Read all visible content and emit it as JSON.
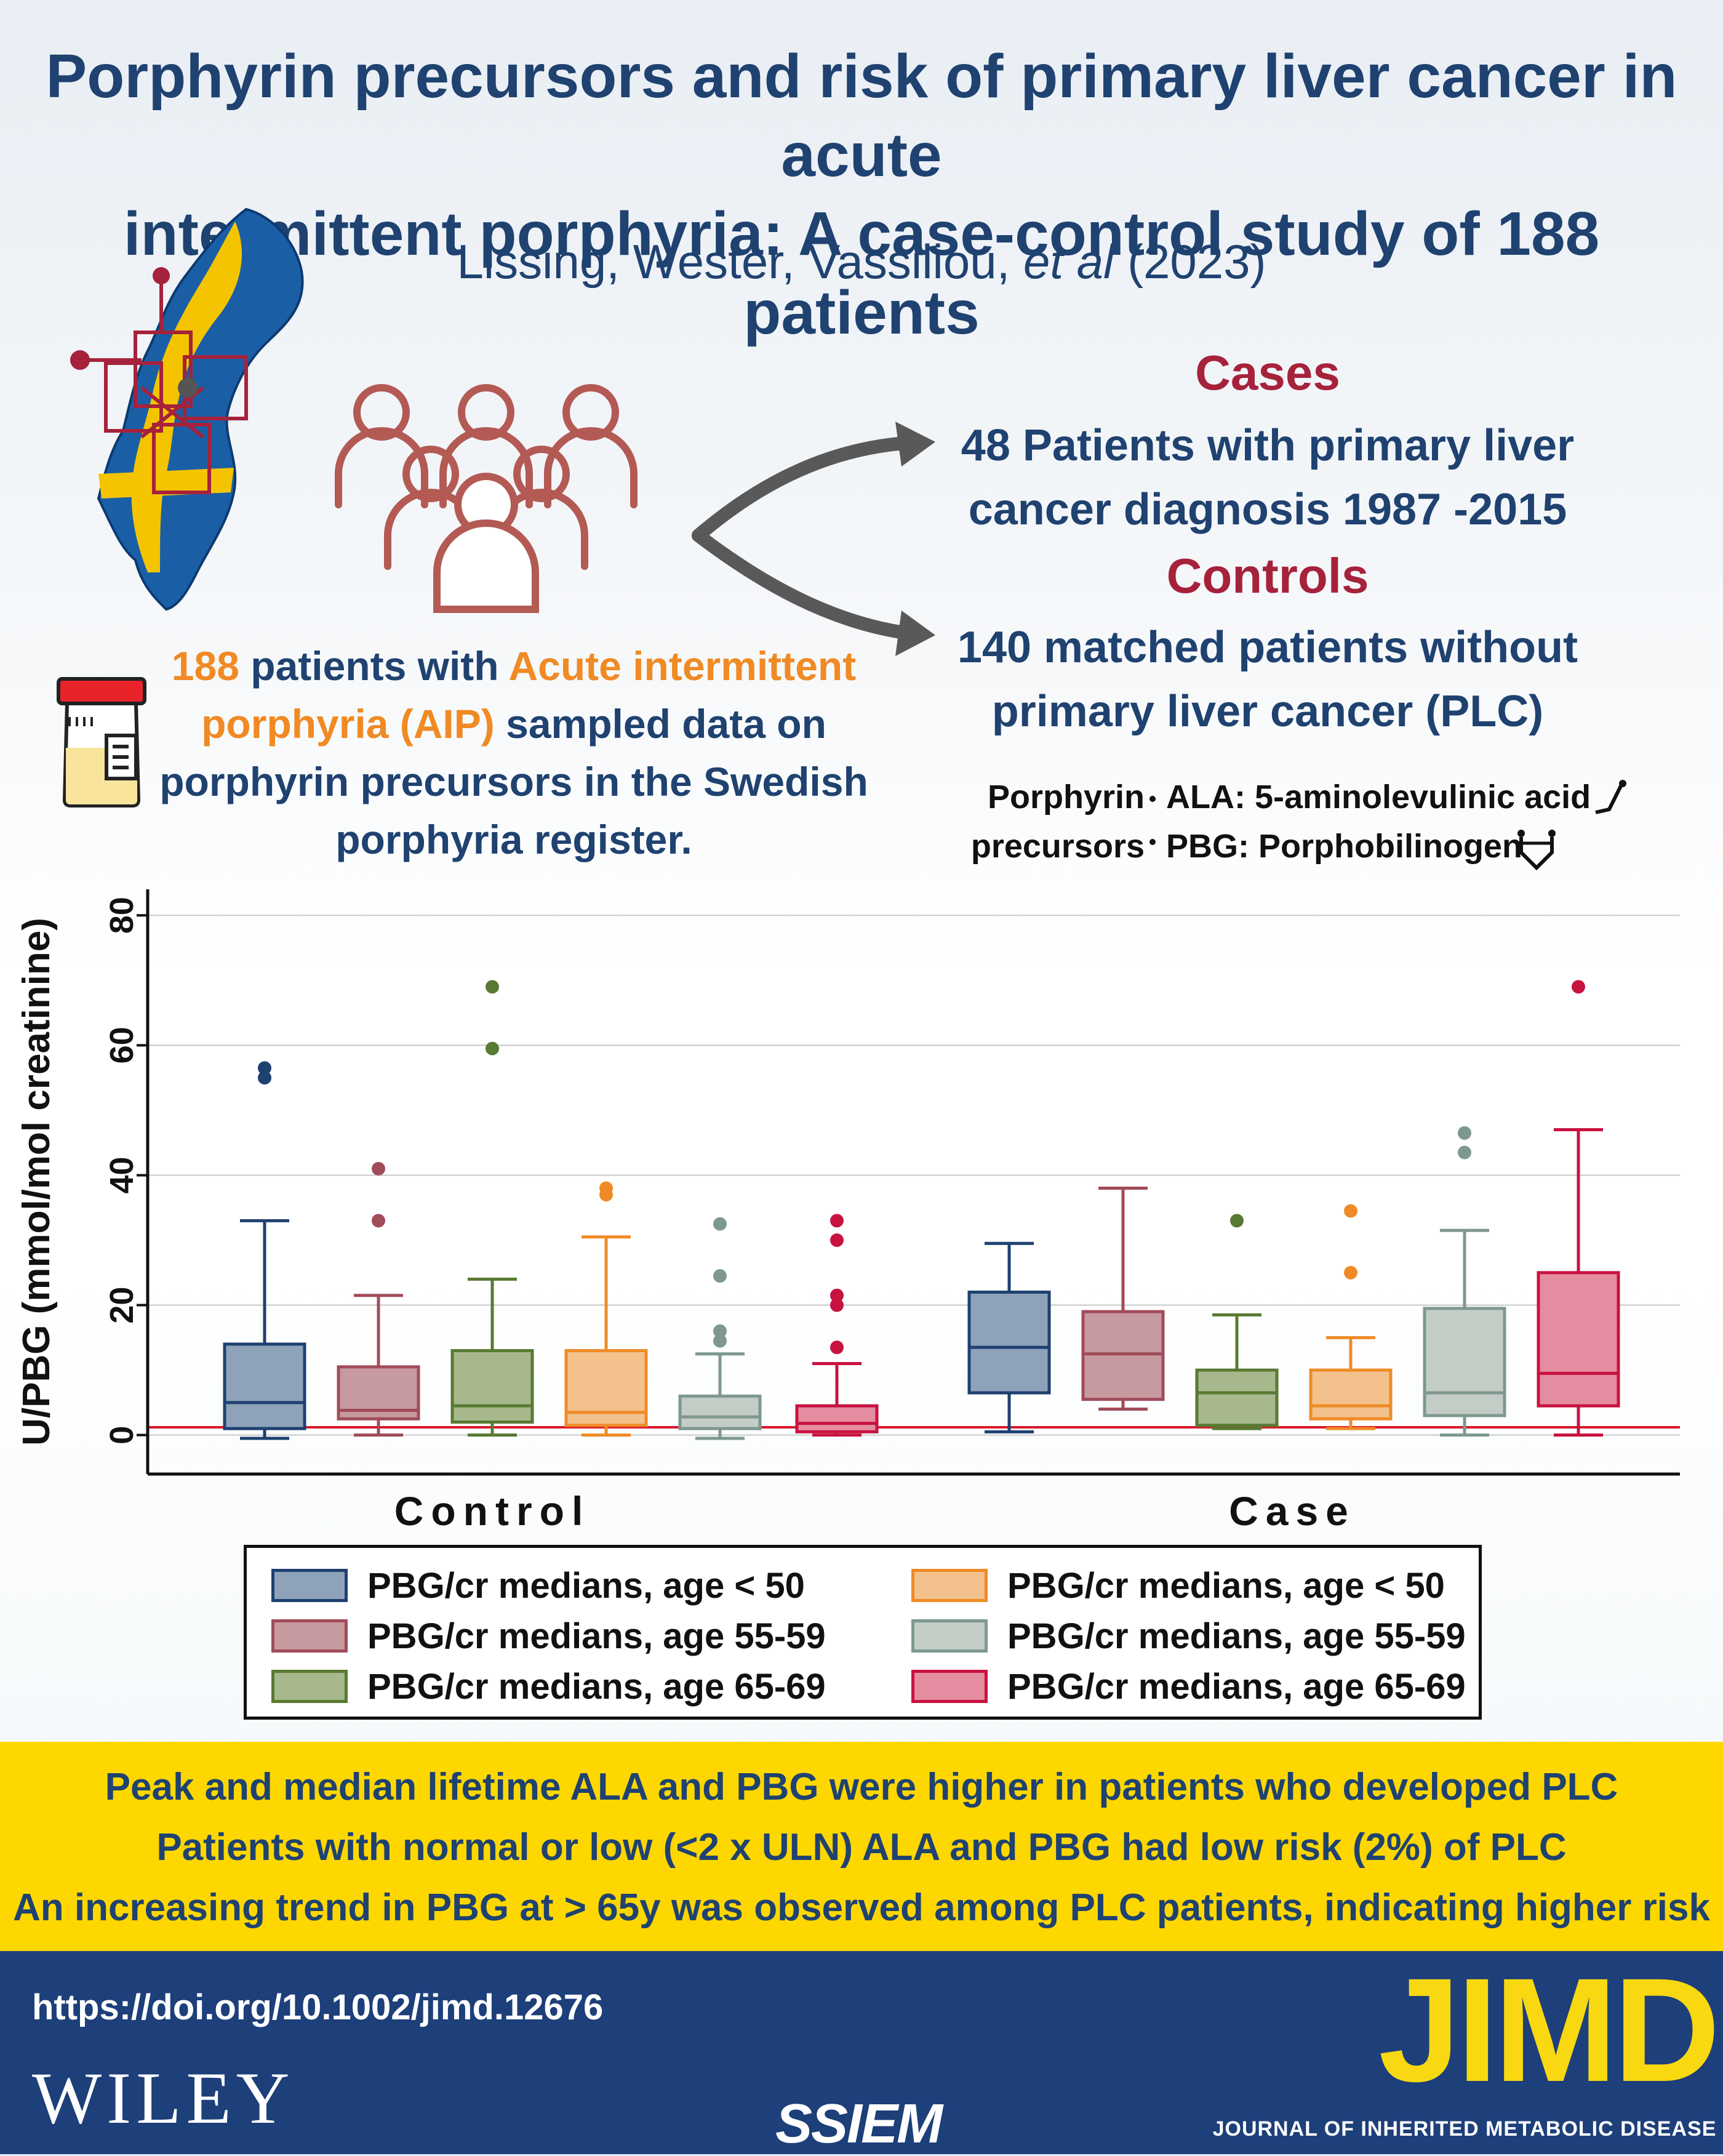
{
  "header": {
    "title_line1": "Porphyrin precursors and risk of primary liver cancer in acute",
    "title_line2": "intermittent porphyria: A case-control study of 188 patients",
    "authors": "Lissing, Wester, Vassiliou,",
    "authors_etal": "et al",
    "year": "(2023)"
  },
  "study": {
    "cases_heading": "Cases",
    "cases_line1": "48 Patients with primary liver",
    "cases_line2": "cancer diagnosis 1987 -2015",
    "controls_heading": "Controls",
    "controls_line1": "140 matched patients without",
    "controls_line2": "primary liver cancer (PLC)",
    "patients_count": "188",
    "patients_text1": "patients with",
    "patients_aip1": "Acute intermittent",
    "patients_aip2": "porphyria (AIP)",
    "patients_text2": "sampled data on",
    "patients_text3": "porphyrin precursors in the Swedish",
    "patients_text4": "porphyria register."
  },
  "precursors": {
    "label_line1": "Porphyrin",
    "label_line2": "precursors",
    "item1": "ALA: 5-aminolevulinic acid",
    "item2": "PBG: Porphobilinogen"
  },
  "colors": {
    "navy": "#1f4270",
    "crimson": "#a6223b",
    "orange": "#f08a24",
    "yellow": "#fed700",
    "footer_blue": "#1d3f7a"
  },
  "chart_data": {
    "type": "box",
    "ylabel": "U/PBG (mmol/mol creatinine)",
    "ylim": [
      -6,
      84
    ],
    "yticks": [
      0,
      20,
      40,
      60,
      80
    ],
    "reference_line": 1.2,
    "groups": [
      "Control",
      "Case"
    ],
    "series": [
      {
        "name": "PBG/cr medians, age < 50",
        "group": "Control",
        "fill": "#8ea3ba",
        "stroke": "#1e4170",
        "q1": 1,
        "median": 5,
        "q3": 14,
        "whisker_low": -0.5,
        "whisker_high": 33,
        "outliers": [
          55,
          56.5
        ]
      },
      {
        "name": "PBG/cr medians, age 55-59",
        "group": "Control",
        "fill": "#c79aa0",
        "stroke": "#a14c59",
        "q1": 2.5,
        "median": 3.8,
        "q3": 10.5,
        "whisker_low": 0,
        "whisker_high": 21.5,
        "outliers": [
          33,
          41
        ]
      },
      {
        "name": "PBG/cr medians, age 65-69",
        "group": "Control",
        "fill": "#a6b88c",
        "stroke": "#587a32",
        "q1": 2,
        "median": 4.5,
        "q3": 13,
        "whisker_low": 0,
        "whisker_high": 24,
        "outliers": [
          59.5,
          69
        ]
      },
      {
        "name": "PBG/cr medians, age < 50",
        "group": "Control",
        "fill": "#f3c18c",
        "stroke": "#ef8b26",
        "q1": 1.5,
        "median": 3.5,
        "q3": 13,
        "whisker_low": 0,
        "whisker_high": 30.5,
        "outliers": [
          37,
          38
        ]
      },
      {
        "name": "PBG/cr medians, age 55-59",
        "group": "Control",
        "fill": "#c3cdc6",
        "stroke": "#7e9891",
        "q1": 1,
        "median": 2.8,
        "q3": 6,
        "whisker_low": -0.5,
        "whisker_high": 12.5,
        "outliers": [
          14.5,
          16,
          24.5,
          32.5
        ]
      },
      {
        "name": "PBG/cr medians, age 65-69",
        "group": "Control",
        "fill": "#e48ca0",
        "stroke": "#c8123f",
        "q1": 0.5,
        "median": 1.8,
        "q3": 4.5,
        "whisker_low": 0,
        "whisker_high": 11,
        "outliers": [
          13.5,
          20,
          21.5,
          30,
          33
        ]
      },
      {
        "name": "PBG/cr medians, age < 50",
        "group": "Case",
        "fill": "#8ea3ba",
        "stroke": "#1e4170",
        "q1": 6.5,
        "median": 13.5,
        "q3": 22,
        "whisker_low": 0.5,
        "whisker_high": 29.5,
        "outliers": []
      },
      {
        "name": "PBG/cr medians, age 55-59",
        "group": "Case",
        "fill": "#c79aa0",
        "stroke": "#a14c59",
        "q1": 5.5,
        "median": 12.5,
        "q3": 19,
        "whisker_low": 4,
        "whisker_high": 38,
        "outliers": []
      },
      {
        "name": "PBG/cr medians, age 65-69",
        "group": "Case",
        "fill": "#a6b88c",
        "stroke": "#587a32",
        "q1": 1.5,
        "median": 6.5,
        "q3": 10,
        "whisker_low": 1,
        "whisker_high": 18.5,
        "outliers": [
          33
        ]
      },
      {
        "name": "PBG/cr medians, age < 50",
        "group": "Case",
        "fill": "#f3c18c",
        "stroke": "#ef8b26",
        "q1": 2.5,
        "median": 4.5,
        "q3": 10,
        "whisker_low": 1,
        "whisker_high": 15,
        "outliers": [
          25,
          34.5
        ]
      },
      {
        "name": "PBG/cr medians, age 55-59",
        "group": "Case",
        "fill": "#c3cdc6",
        "stroke": "#7e9891",
        "q1": 3,
        "median": 6.5,
        "q3": 19.5,
        "whisker_low": 0,
        "whisker_high": 31.5,
        "outliers": [
          43.5,
          46.5
        ]
      },
      {
        "name": "PBG/cr medians, age 65-69",
        "group": "Case",
        "fill": "#e48ca0",
        "stroke": "#c8123f",
        "q1": 4.5,
        "median": 9.5,
        "q3": 25,
        "whisker_low": 0,
        "whisker_high": 47,
        "outliers": [
          69
        ]
      }
    ],
    "legend": [
      {
        "label": "PBG/cr medians, age < 50",
        "fill": "#8ea3ba",
        "stroke": "#1e4170"
      },
      {
        "label": "PBG/cr medians, age 55-59",
        "fill": "#c79aa0",
        "stroke": "#a14c59"
      },
      {
        "label": "PBG/cr medians, age 65-69",
        "fill": "#a6b88c",
        "stroke": "#587a32"
      },
      {
        "label": "PBG/cr medians, age < 50",
        "fill": "#f3c18c",
        "stroke": "#ef8b26"
      },
      {
        "label": "PBG/cr medians, age 55-59",
        "fill": "#c3cdc6",
        "stroke": "#7e9891"
      },
      {
        "label": "PBG/cr medians, age 65-69",
        "fill": "#e48ca0",
        "stroke": "#c8123f"
      }
    ]
  },
  "findings": [
    "Peak and median lifetime ALA and PBG were higher in patients who developed PLC",
    "Patients with normal or low (<2 x ULN) ALA and PBG had low risk (2%) of PLC",
    "An increasing trend in PBG at > 65y was observed among PLC patients, indicating higher risk"
  ],
  "footer": {
    "doi": "https://doi.org/10.1002/jimd.12676",
    "publisher": "WILEY",
    "society": "SSIEM",
    "journal": "JIMD",
    "journal_full": "JOURNAL OF INHERITED METABOLIC DISEASE"
  }
}
